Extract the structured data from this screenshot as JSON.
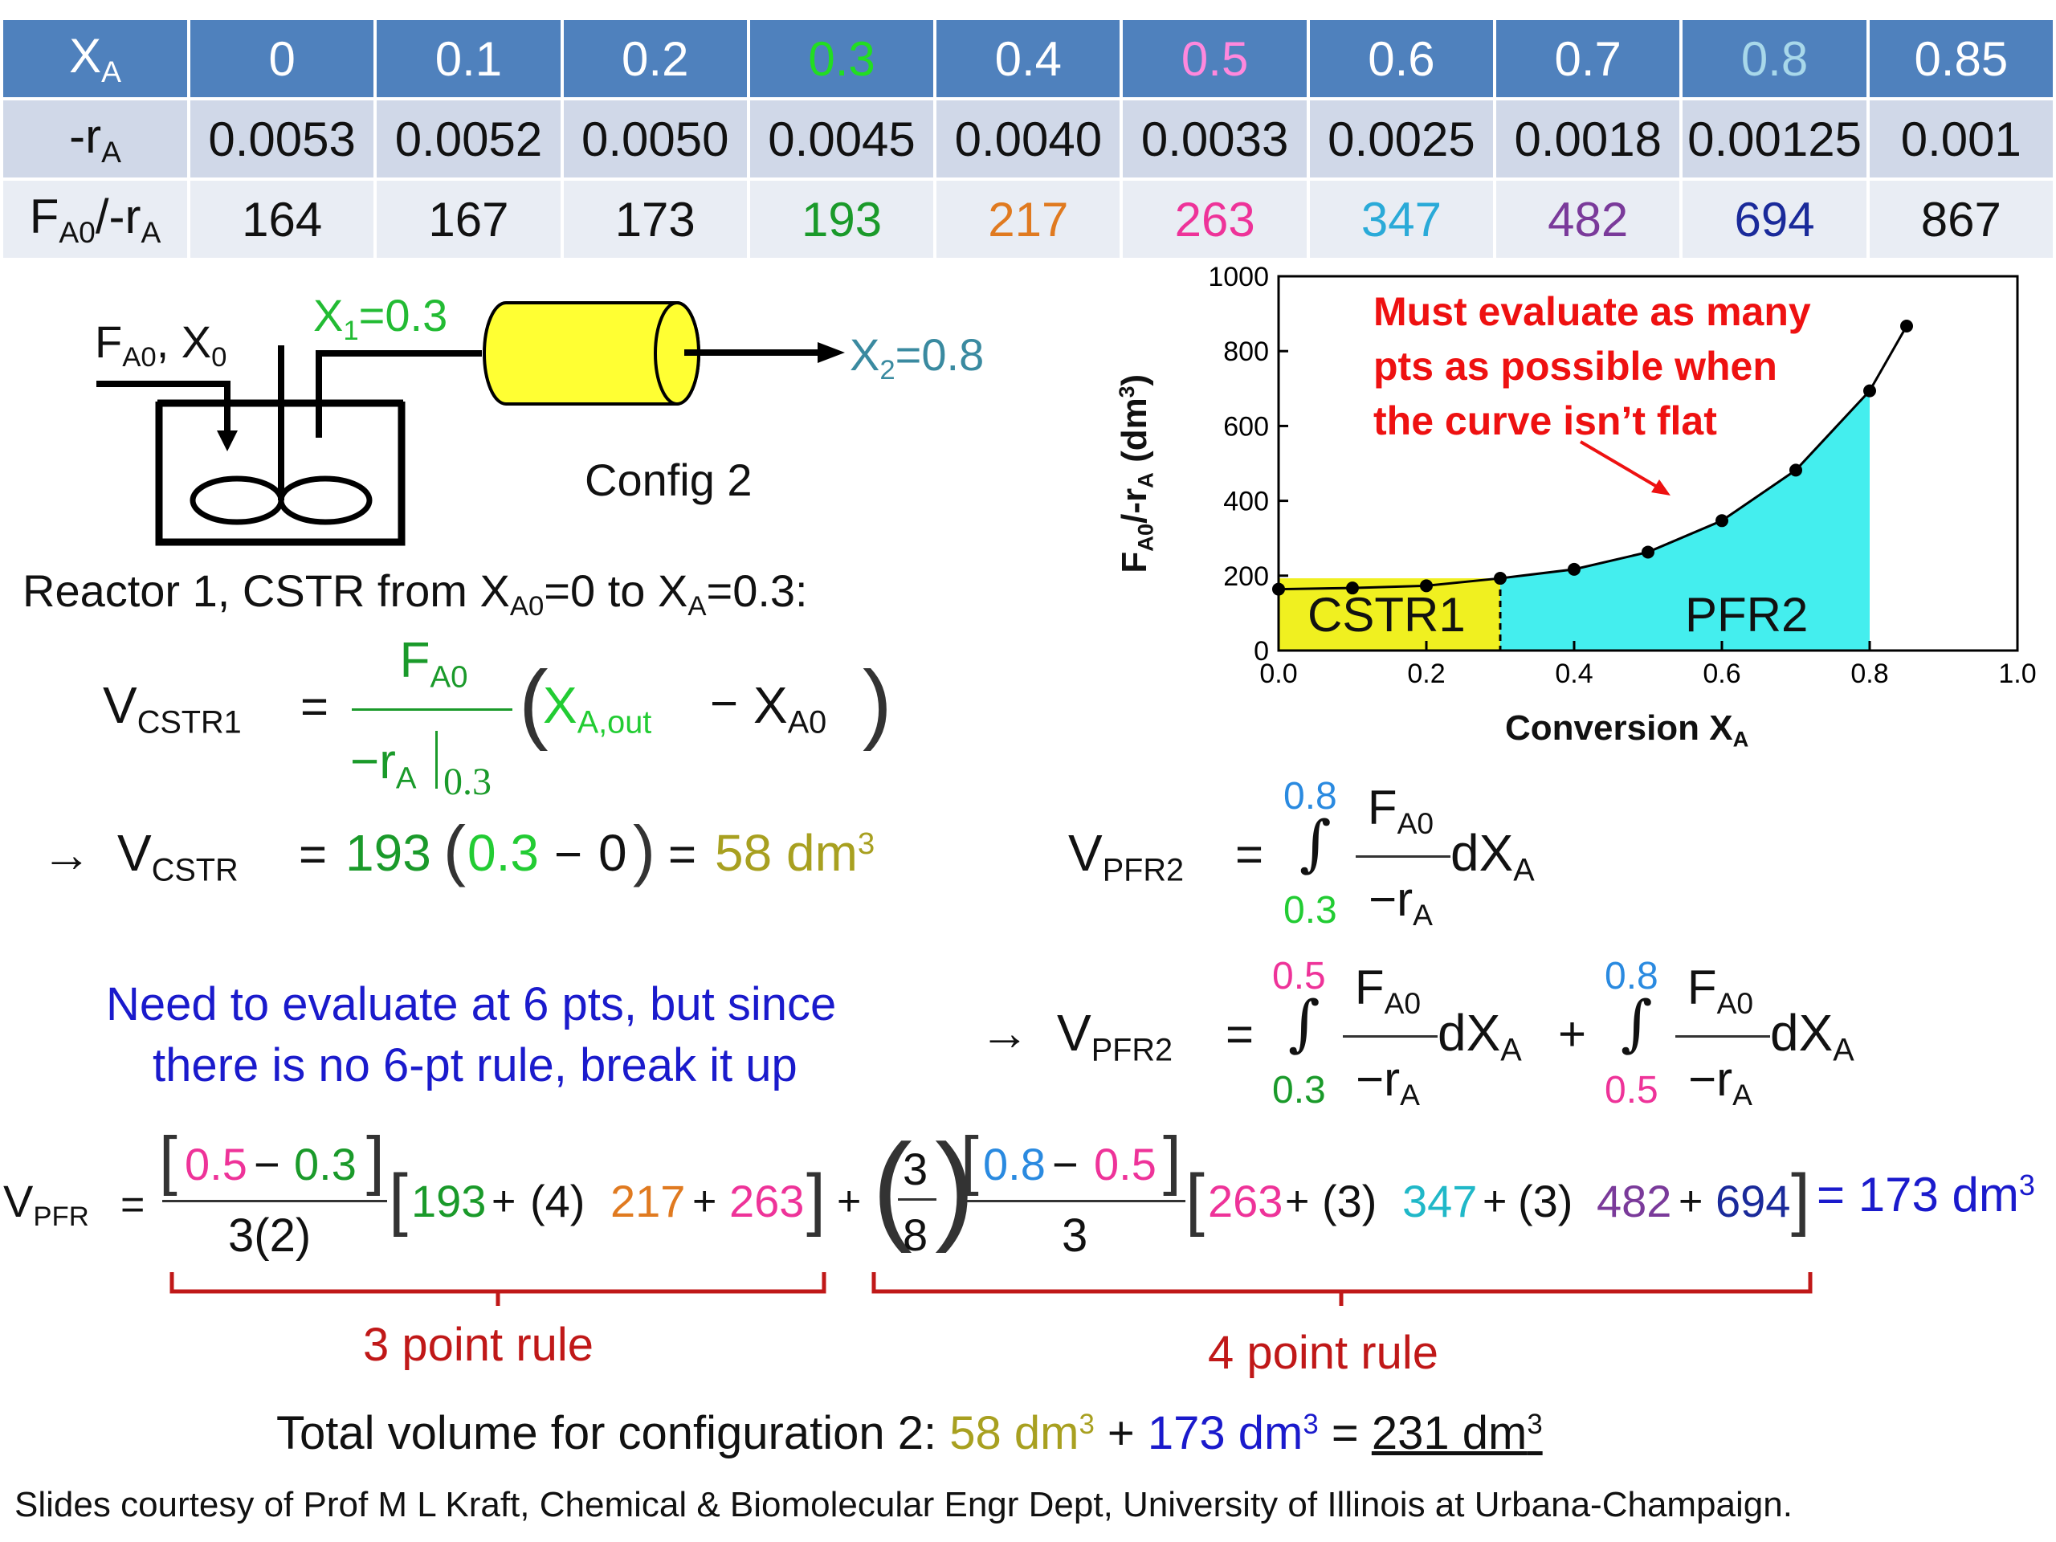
{
  "table": {
    "row_x": {
      "label": "X",
      "label_sub": "A",
      "values": [
        "0",
        "0.1",
        "0.2",
        "0.3",
        "0.4",
        "0.5",
        "0.6",
        "0.7",
        "0.8",
        "0.85"
      ]
    },
    "row_r": {
      "label": "-r",
      "label_sub": "A",
      "values": [
        "0.0053",
        "0.0052",
        "0.0050",
        "0.0045",
        "0.0040",
        "0.0033",
        "0.0025",
        "0.0018",
        "0.00125",
        "0.001"
      ]
    },
    "row_f": {
      "label_a": "F",
      "label_sub1": "A0",
      "label_b": "/-r",
      "label_sub2": "A",
      "values": [
        "164",
        "167",
        "173",
        "193",
        "217",
        "263",
        "347",
        "482",
        "694",
        "867"
      ]
    },
    "header_colors": [
      "#ffffff",
      "#ffffff",
      "#ffffff",
      "#22dd22",
      "#ffffff",
      "#ff88dd",
      "#ffffff",
      "#ffffff",
      "#a8d8ea",
      "#ffffff"
    ],
    "f_colors": [
      "#111111",
      "#111111",
      "#111111",
      "#1a9a2a",
      "#e07a20",
      "#ee3399",
      "#2aaad8",
      "#7a3a9a",
      "#1a2a9a",
      "#111111"
    ]
  },
  "reactor": {
    "feed_a": "F",
    "feed_sub": "A0",
    "feed_b": ", X",
    "feed_sub2": "0",
    "x1_a": "X",
    "x1_sub": "1",
    "x1_b": "=0.3",
    "x2_a": "X",
    "x2_sub": "2",
    "x2_b": "=0.8",
    "config_label": "Config 2"
  },
  "reactor1_text": {
    "a": "Reactor 1, CSTR from X",
    "sub1": "A0",
    "b": "=0 to X",
    "sub2": "A",
    "c": "=0.3:"
  },
  "eq_cstr": {
    "lhs": "V",
    "lhs_sub": "CSTR1",
    "equals": "=",
    "num": "F",
    "num_sub": "A0",
    "den": "−r",
    "den_sub": "A",
    "den_eval": "0.3",
    "paren_a": "X",
    "paren_sub": "A,out",
    "minus": "−",
    "paren_b": "X",
    "paren_sub2": "A0"
  },
  "eq_cstr2": {
    "arrow": "→",
    "lhs": "V",
    "lhs_sub": "CSTR",
    "equals": "=",
    "coef": "193",
    "lp": "(",
    "x": "0.3",
    "minus": "−",
    "zero": "0",
    "rp": ")",
    "eq2": "=",
    "result": "58 dm",
    "result_sup": "3"
  },
  "eq_pfr2": {
    "lhs": "V",
    "lhs_sub": "PFR2",
    "equals": "=",
    "upper": "0.8",
    "lower": "0.3",
    "num": "F",
    "num_sub": "A0",
    "den": "−r",
    "den_sub": "A",
    "dx": "dX",
    "dx_sub": "A"
  },
  "note": {
    "line1": "Need to evaluate at 6 pts, but since",
    "line2": "there is no 6-pt rule, break it up"
  },
  "eq_pfr2b": {
    "arrow": "→",
    "lhs": "V",
    "lhs_sub": "PFR2",
    "equals": "=",
    "upper1": "0.5",
    "lower1": "0.3",
    "upper2": "0.8",
    "lower2": "0.5",
    "num": "F",
    "num_sub": "A0",
    "den": "−r",
    "den_sub": "A",
    "dx": "dX",
    "dx_sub": "A",
    "plus": "+"
  },
  "eq_final": {
    "lhs": "V",
    "lhs_sub": "PFR",
    "equals": "=",
    "f1_num_a": "0.5",
    "f1_minus": "−",
    "f1_num_b": "0.3",
    "f1_den": "3(2)",
    "t1": "193",
    "t1_op": "+",
    "t2_coef": "(4)",
    "t2": "217",
    "t2_op": "+",
    "t3": "263",
    "plus": "+",
    "c_num": "3",
    "c_den": "8",
    "f2_num_a": "0.8",
    "f2_minus": "−",
    "f2_num_b": "0.5",
    "f2_den": "3",
    "u1": "263",
    "u_op": "+",
    "u2_coef": "(3)",
    "u2": "347",
    "u3_coef": "(3)",
    "u3": "482",
    "u4": "694",
    "result": "= 173 dm",
    "result_sup": "3"
  },
  "rule3": "3 point rule",
  "rule4": "4 point rule",
  "total": {
    "a": "Total volume for configuration 2: ",
    "v1": "58 dm",
    "v1_sup": "3",
    "plus": " + ",
    "v2": "173 dm",
    "v2_sup": "3",
    "eq": " = ",
    "v3": "231 dm",
    "v3_sup": "3"
  },
  "footer": "Slides courtesy of Prof M L Kraft, Chemical & Biomolecular Engr Dept, University of Illinois at Urbana-Champaign.",
  "colors": {
    "green": "#1a9a2a",
    "lightgreen": "#22cc33",
    "pink": "#ee3399",
    "orange": "#e07a20",
    "cyan": "#20b8c8",
    "purple": "#7a3a9a",
    "navy": "#1a2a9a",
    "blue": "#1a1acc",
    "olive": "#a8a020",
    "red": "#cc1111",
    "teal": "#3a8aa0",
    "lightblue": "#2a8ae0"
  },
  "chart_data": {
    "type": "line",
    "x": [
      0,
      0.1,
      0.2,
      0.3,
      0.4,
      0.5,
      0.6,
      0.7,
      0.8,
      0.85
    ],
    "y": [
      164,
      167,
      173,
      193,
      217,
      263,
      347,
      482,
      694,
      867
    ],
    "xlim": [
      0,
      1.0
    ],
    "ylim": [
      0,
      1000
    ],
    "xticks": [
      "0.0",
      "0.2",
      "0.4",
      "0.6",
      "0.8",
      "1.0"
    ],
    "yticks": [
      "0",
      "200",
      "400",
      "600",
      "800",
      "1000"
    ],
    "xlabel": "Conversion X",
    "xlabel_sub": "A",
    "ylabel": "F",
    "ylabel_sub1": "A0",
    "ylabel_mid": "/-r",
    "ylabel_sub2": "A",
    "ylabel_end": " (dm",
    "ylabel_sup": "3",
    "ylabel_close": ")",
    "regions": [
      {
        "name": "CSTR1",
        "from": 0,
        "to": 0.3,
        "height": 193,
        "color": "#f0f020"
      },
      {
        "name": "PFR2",
        "from": 0.3,
        "to": 0.8,
        "color": "#44eeee"
      }
    ],
    "annotation": {
      "line1": "Must evaluate as many",
      "line2": "pts as possible when",
      "line3": "the curve isn’t flat",
      "color": "#ee1111"
    }
  }
}
